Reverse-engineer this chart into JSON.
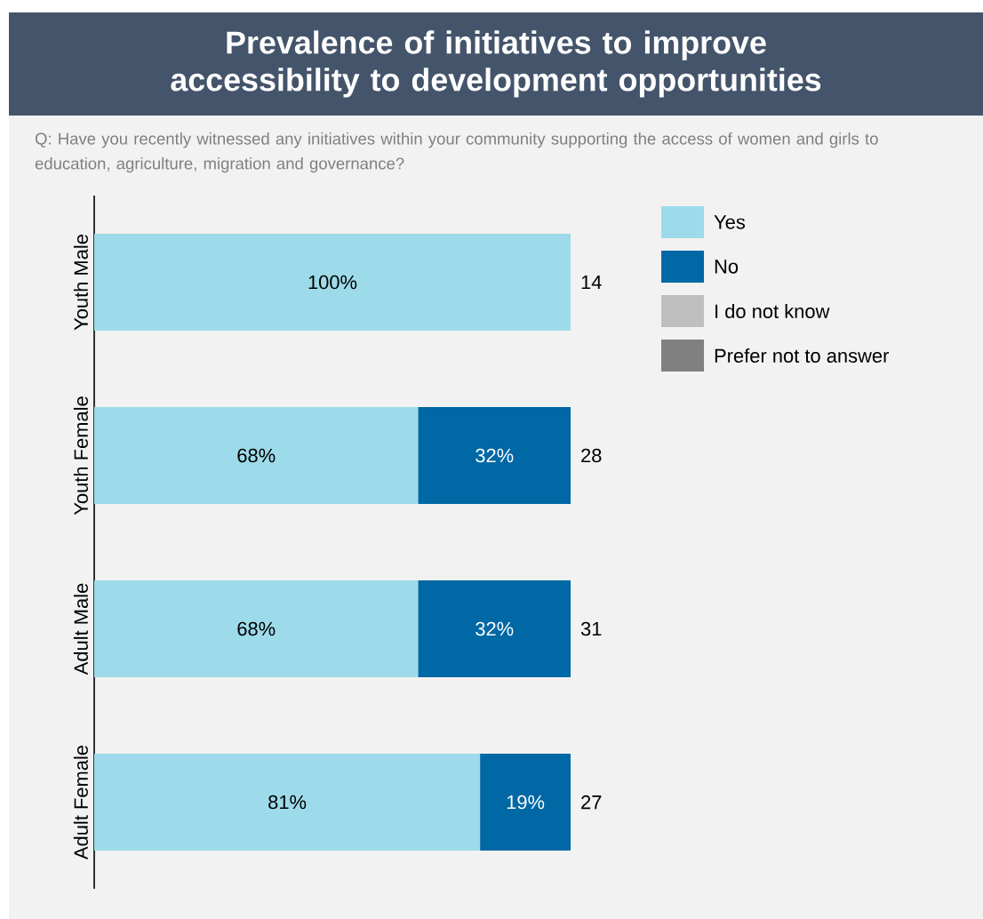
{
  "chart_data": {
    "type": "bar",
    "orientation": "horizontal",
    "stacked": true,
    "title": "Prevalence of initiatives to improve accessibility to development opportunities",
    "subtitle": "Q: Have you recently witnessed any initiatives within your community supporting the access of women and girls to education, agriculture, migration and governance?",
    "categories": [
      "Youth Male",
      "Youth Female",
      "Adult Male",
      "Adult Female"
    ],
    "series": [
      {
        "name": "Yes",
        "color": "#9ddbea",
        "values": [
          100,
          68,
          68,
          81
        ],
        "value_labels": [
          "100%",
          "68%",
          "68%",
          "81%"
        ]
      },
      {
        "name": "No",
        "color": "#0068a5",
        "values": [
          null,
          32,
          32,
          19
        ],
        "value_labels": [
          null,
          "32%",
          "32%",
          "19%"
        ]
      },
      {
        "name": "I do not know",
        "color": "#bfbfbf",
        "values": [
          null,
          null,
          null,
          null
        ]
      },
      {
        "name": "Prefer not to answer",
        "color": "#808080",
        "values": [
          null,
          null,
          null,
          null
        ]
      }
    ],
    "annotations": [
      "14",
      "28",
      "31",
      "27"
    ],
    "legend": "top right"
  }
}
